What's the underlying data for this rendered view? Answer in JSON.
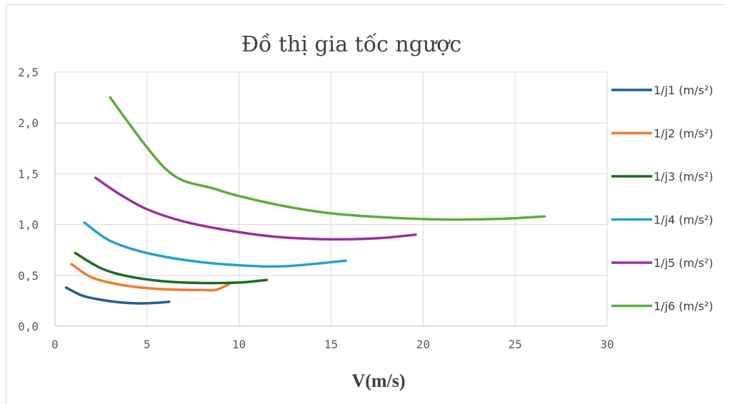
{
  "chart_data": {
    "type": "line",
    "title": "Đồ thị gia tốc ngược",
    "xlabel": "V(m/s)",
    "ylabel": "",
    "xlim": [
      0,
      30
    ],
    "ylim": [
      0,
      2.5
    ],
    "xticks": [
      "0",
      "5",
      "10",
      "15",
      "20",
      "25",
      "30"
    ],
    "yticks": [
      "0,0",
      "0,5",
      "1,0",
      "1,5",
      "2,0",
      "2,5"
    ],
    "grid": true,
    "legend_position": "right",
    "series": [
      {
        "name": "1/j1 (m/s²)",
        "color": "#255e91",
        "x": [
          0.6,
          1.5,
          2.5,
          3.5,
          4.5,
          5.5,
          6.2
        ],
        "y": [
          0.38,
          0.3,
          0.26,
          0.235,
          0.225,
          0.23,
          0.24
        ]
      },
      {
        "name": "1/j2 (m/s²)",
        "color": "#ed7d31",
        "x": [
          0.9,
          2.0,
          3.5,
          5.0,
          6.5,
          8.0,
          8.8,
          9.6
        ],
        "y": [
          0.61,
          0.48,
          0.41,
          0.375,
          0.36,
          0.355,
          0.36,
          0.43
        ]
      },
      {
        "name": "1/j3 (m/s²)",
        "color": "#1e6b24",
        "x": [
          1.1,
          2.5,
          4.0,
          6.0,
          8.0,
          10.0,
          11.5
        ],
        "y": [
          0.72,
          0.57,
          0.49,
          0.44,
          0.425,
          0.43,
          0.455
        ]
      },
      {
        "name": "1/j4 (m/s²)",
        "color": "#22a0d4",
        "x": [
          1.6,
          3.0,
          5.0,
          7.5,
          10.0,
          12.5,
          15.8
        ],
        "y": [
          1.02,
          0.84,
          0.72,
          0.64,
          0.6,
          0.59,
          0.645
        ]
      },
      {
        "name": "1/j5 (m/s²)",
        "color": "#9a2f9e",
        "x": [
          2.2,
          3.5,
          5.0,
          7.0,
          9.5,
          12.0,
          15.0,
          17.5,
          19.6
        ],
        "y": [
          1.46,
          1.3,
          1.15,
          1.03,
          0.94,
          0.88,
          0.855,
          0.865,
          0.9
        ]
      },
      {
        "name": "1/j6 (m/s²)",
        "color": "#5eab3c",
        "x": [
          3.0,
          4.0,
          5.0,
          6.0,
          7.0,
          8.5,
          10.0,
          12.5,
          15.0,
          18.0,
          21.0,
          24.0,
          26.6
        ],
        "y": [
          2.25,
          2.0,
          1.76,
          1.55,
          1.43,
          1.36,
          1.28,
          1.18,
          1.11,
          1.07,
          1.05,
          1.055,
          1.08
        ]
      }
    ]
  }
}
